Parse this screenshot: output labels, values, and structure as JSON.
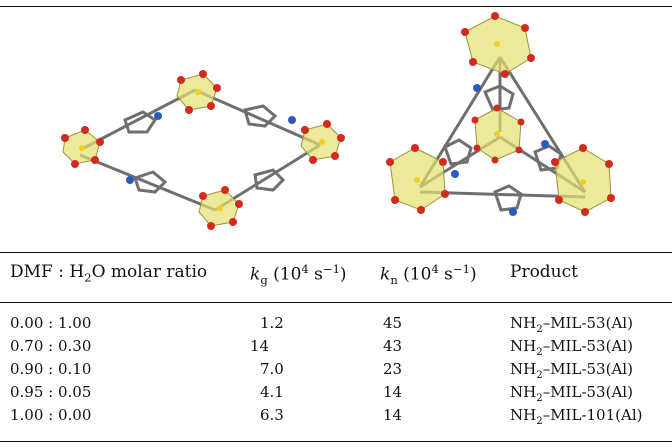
{
  "table": {
    "headers": {
      "ratio_prefix": "DMF : H",
      "ratio_sub": "2",
      "ratio_suffix": "O molar ratio",
      "kg_var": "k",
      "kg_sub": "g",
      "kg_unit_a": "(10",
      "kg_unit_exp": "4",
      "kg_unit_b": " s",
      "kg_unit_exp2": "−1",
      "kg_unit_c": ")",
      "kn_var": "k",
      "kn_sub": "n",
      "kn_unit_a": "(10",
      "kn_unit_exp": "4",
      "kn_unit_b": " s",
      "kn_unit_exp2": "−1",
      "kn_unit_c": ")",
      "product": "Product"
    },
    "rows": [
      {
        "ratio": "0.00 : 1.00",
        "kg": "1.2",
        "kn": "45",
        "prod_a": "NH",
        "prod_sub": "2",
        "prod_b": "–MIL-53(Al)"
      },
      {
        "ratio": "0.70 : 0.30",
        "kg": "14",
        "kn": "43",
        "prod_a": "NH",
        "prod_sub": "2",
        "prod_b": "–MIL-53(Al)"
      },
      {
        "ratio": "0.90 : 0.10",
        "kg": "7.0",
        "kn": "23",
        "prod_a": "NH",
        "prod_sub": "2",
        "prod_b": "–MIL-53(Al)"
      },
      {
        "ratio": "0.95 : 0.05",
        "kg": "4.1",
        "kn": "14",
        "prod_a": "NH",
        "prod_sub": "2",
        "prod_b": "–MIL-53(Al)"
      },
      {
        "ratio": "1.00 : 0.00",
        "kg": "6.3",
        "kn": "14",
        "prod_a": "NH",
        "prod_sub": "2",
        "prod_b": "–MIL-101(Al)"
      }
    ]
  },
  "colors": {
    "oxygen": "#d42a1e",
    "carbon": "#7a7a7a",
    "nitrogen": "#2a5bbf",
    "octahedron": "#e6e070",
    "aluminium": "#f2d020"
  }
}
